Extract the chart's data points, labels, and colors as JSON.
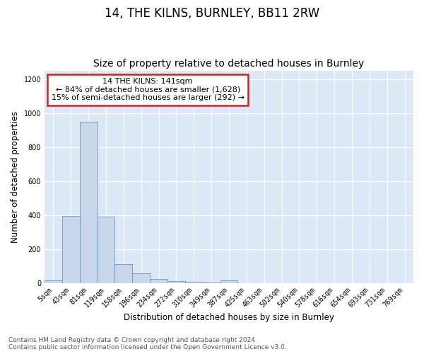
{
  "title": "14, THE KILNS, BURNLEY, BB11 2RW",
  "subtitle": "Size of property relative to detached houses in Burnley",
  "xlabel": "Distribution of detached houses by size in Burnley",
  "ylabel": "Number of detached properties",
  "bar_color": "#c8d8ea",
  "bar_edge_color": "#6699cc",
  "annotation_title": "14 THE KILNS: 141sqm",
  "annotation_line1": "← 84% of detached houses are smaller (1,628)",
  "annotation_line2": "15% of semi-detached houses are larger (292) →",
  "annotation_box_facecolor": "#ffffff",
  "annotation_box_edgecolor": "#cc2222",
  "categories": [
    "5sqm",
    "43sqm",
    "81sqm",
    "119sqm",
    "158sqm",
    "196sqm",
    "234sqm",
    "272sqm",
    "310sqm",
    "349sqm",
    "387sqm",
    "425sqm",
    "463sqm",
    "502sqm",
    "540sqm",
    "578sqm",
    "616sqm",
    "654sqm",
    "693sqm",
    "731sqm",
    "769sqm"
  ],
  "values": [
    15,
    395,
    950,
    390,
    110,
    55,
    22,
    12,
    5,
    2,
    15,
    0,
    0,
    0,
    0,
    0,
    0,
    0,
    0,
    0,
    0
  ],
  "ylim": [
    0,
    1250
  ],
  "yticks": [
    0,
    200,
    400,
    600,
    800,
    1000,
    1200
  ],
  "figure_bg": "#ffffff",
  "plot_bg": "#dce8f5",
  "footer1": "Contains HM Land Registry data © Crown copyright and database right 2024.",
  "footer2": "Contains public sector information licensed under the Open Government Licence v3.0.",
  "title_fontsize": 12,
  "subtitle_fontsize": 10,
  "tick_fontsize": 7,
  "ylabel_fontsize": 8.5,
  "xlabel_fontsize": 8.5,
  "footer_fontsize": 6.5,
  "annotation_fontsize": 8,
  "annotation_title_fontsize": 8.5
}
